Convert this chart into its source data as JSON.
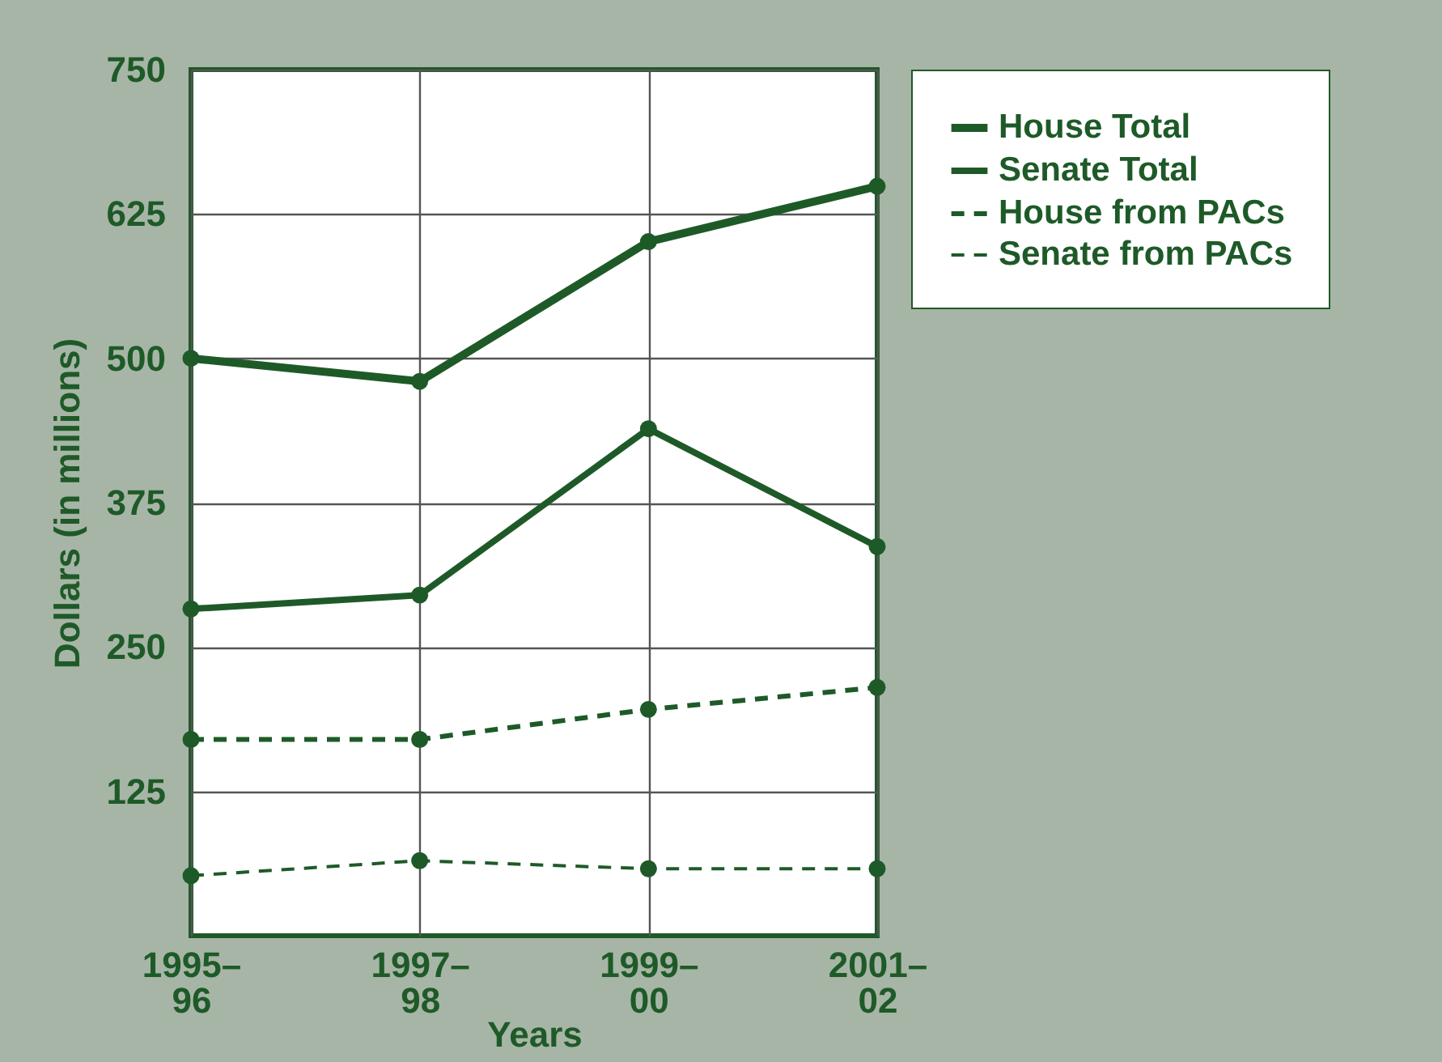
{
  "chart_data": {
    "type": "line",
    "xlabel": "Years",
    "ylabel": "Dollars (in millions)",
    "categories": [
      "1995–96",
      "1997–98",
      "1999–00",
      "2001–02"
    ],
    "series": [
      {
        "name": "House Total",
        "color": "#1e5a28",
        "values": [
          500,
          480,
          601,
          649
        ],
        "line_style": "solid"
      },
      {
        "name": "Senate Total",
        "color": "#1e5a28",
        "values": [
          283,
          295,
          439,
          337
        ],
        "line_style": "solid"
      },
      {
        "name": "House from PACs",
        "color": "#1e5a28",
        "values": [
          170,
          170,
          196,
          215
        ],
        "line_style": "dashed"
      },
      {
        "name": "Senate from PACs",
        "color": "#1e5a28",
        "values": [
          52,
          65,
          58,
          58
        ],
        "line_style": "dashed"
      }
    ],
    "ylim": [
      0,
      750
    ],
    "yticks": [
      125,
      250,
      375,
      500,
      625,
      750
    ],
    "grid": true,
    "legend": "top right",
    "marker": "circle"
  }
}
